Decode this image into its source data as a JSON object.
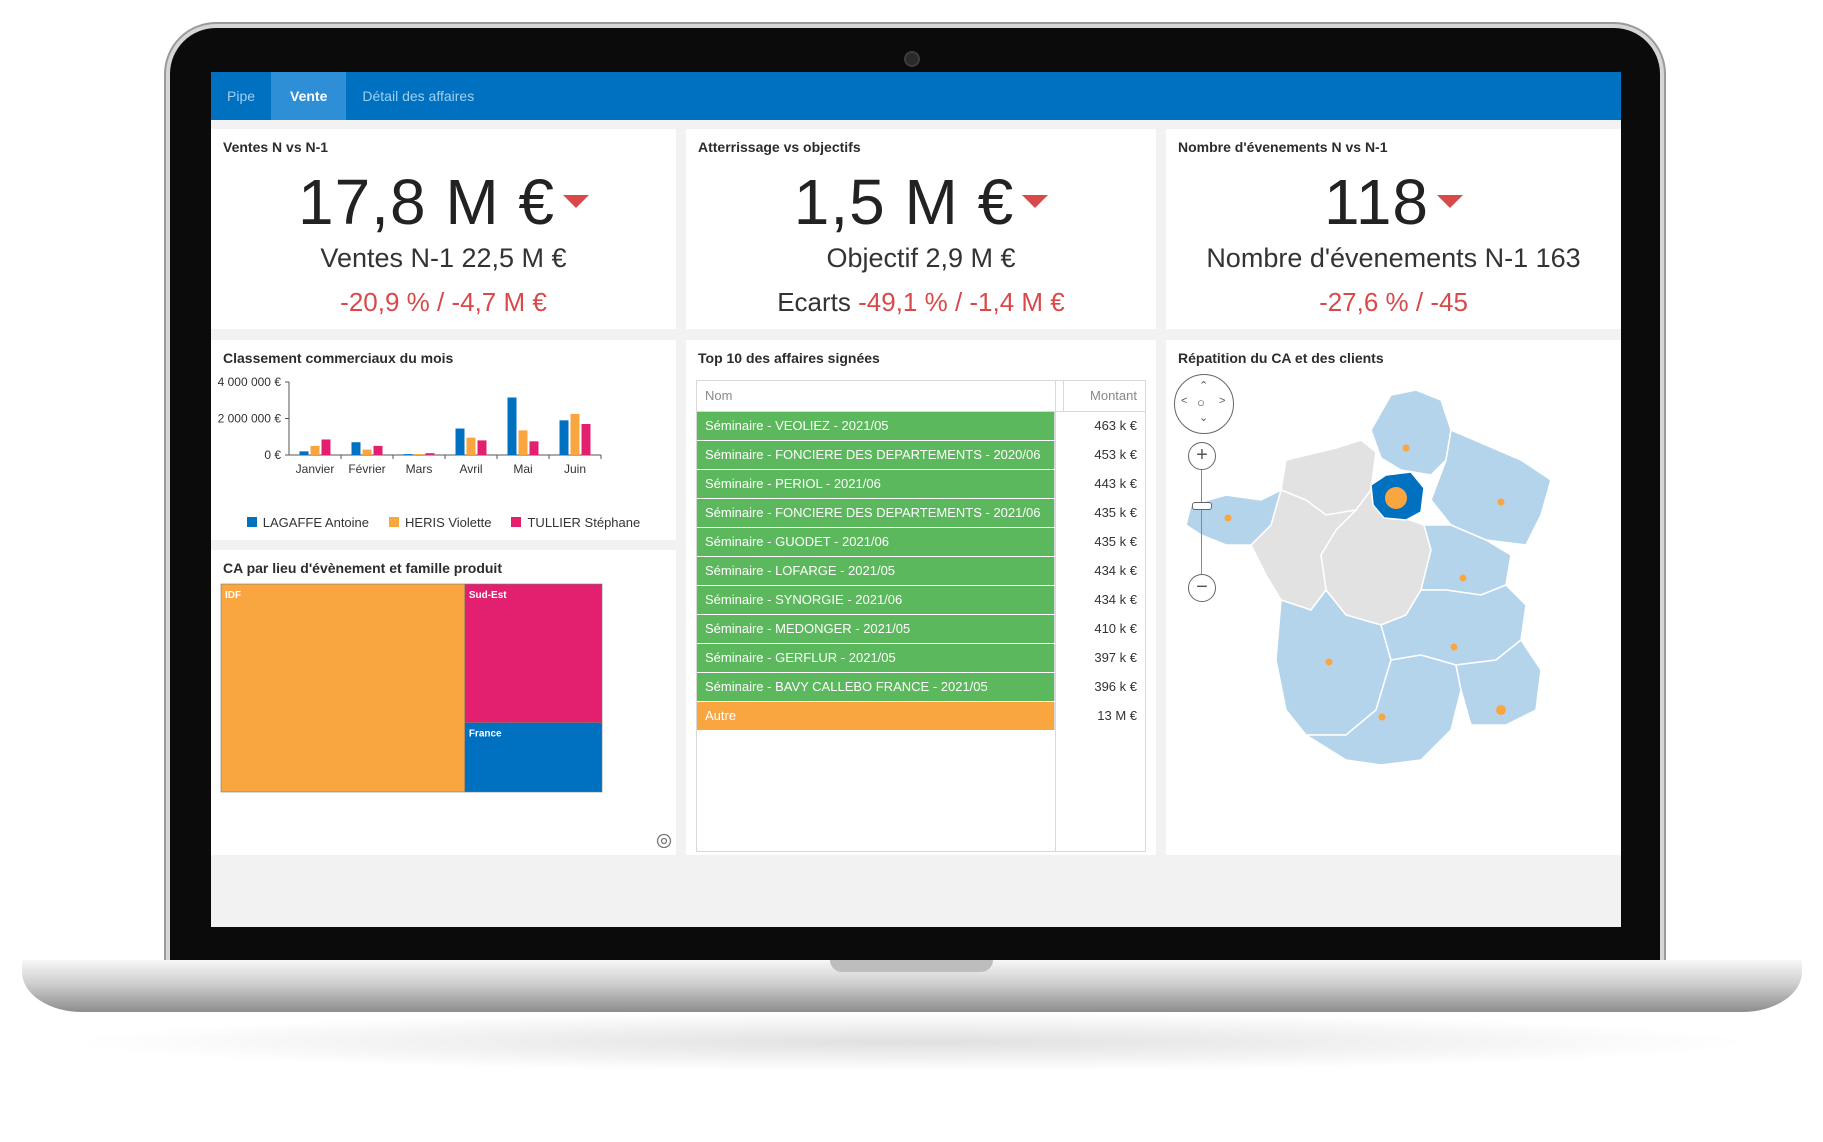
{
  "tabs": [
    {
      "label": "Pipe",
      "active": false
    },
    {
      "label": "Vente",
      "active": true
    },
    {
      "label": "Détail des affaires",
      "active": false
    }
  ],
  "kpis": [
    {
      "title": "Ventes N vs N-1",
      "value": "17,8 M €",
      "sub": "Ventes N-1 22,5 M €",
      "var_label": "",
      "var": "-20,9 % / -4,7 M €"
    },
    {
      "title": "Atterrissage vs objectifs",
      "value": "1,5 M €",
      "sub": "Objectif 2,9 M €",
      "var_label": "Ecarts",
      "var": "-49,1 % / -1,4 M €"
    },
    {
      "title": "Nombre d'évenements N vs N-1",
      "value": "118",
      "sub": "Nombre d'évenements N-1 163",
      "var_label": "",
      "var": "-27,6 % / -45"
    }
  ],
  "ranking": {
    "title": "Classement commerciaux du mois"
  },
  "treemap": {
    "title": "CA par lieu d'évènement et famille produit"
  },
  "top10": {
    "title": "Top 10 des affaires signées",
    "col_name": "Nom",
    "col_amount": "Montant",
    "rows": [
      {
        "name": "Séminaire - VEOLIEZ - 2021/05",
        "amount": "463 k €"
      },
      {
        "name": "Séminaire - FONCIERE DES DEPARTEMENTS - 2020/06",
        "amount": "453 k €"
      },
      {
        "name": "Séminaire - PERIOL - 2021/06",
        "amount": "443 k €"
      },
      {
        "name": "Séminaire - FONCIERE DES DEPARTEMENTS - 2021/06",
        "amount": "435 k €"
      },
      {
        "name": "Séminaire - GUODET - 2021/06",
        "amount": "435 k €"
      },
      {
        "name": "Séminaire - LOFARGE - 2021/05",
        "amount": "434 k €"
      },
      {
        "name": "Séminaire - SYNORGIE - 2021/06",
        "amount": "434 k €"
      },
      {
        "name": "Séminaire - MEDONGER - 2021/05",
        "amount": "410 k €"
      },
      {
        "name": "Séminaire - GERFLUR - 2021/05",
        "amount": "397 k €"
      },
      {
        "name": "Séminaire - BAVY CALLEBO FRANCE - 2021/05",
        "amount": "396 k €"
      },
      {
        "name": "Autre",
        "amount": "13 M €",
        "other": true
      }
    ]
  },
  "map": {
    "title": "Répatition du CA et des clients",
    "zoom_in": "+",
    "zoom_out": "−"
  },
  "chart_data": [
    {
      "type": "bar",
      "title": "Classement commerciaux du mois",
      "categories": [
        "Janvier",
        "Février",
        "Mars",
        "Avril",
        "Mai",
        "Juin"
      ],
      "series": [
        {
          "name": "LAGAFFE Antoine",
          "color": "#0070c0",
          "values": [
            200000,
            700000,
            50000,
            1450000,
            3150000,
            1900000
          ]
        },
        {
          "name": "HERIS Violette",
          "color": "#f9a640",
          "values": [
            500000,
            300000,
            50000,
            950000,
            1350000,
            2250000
          ]
        },
        {
          "name": "TULLIER Stéphane",
          "color": "#e2206f",
          "values": [
            850000,
            500000,
            100000,
            800000,
            750000,
            1700000
          ]
        }
      ],
      "yticks": [
        "4 000 000 €",
        "2 000 000 €",
        "0 €"
      ],
      "ylim": [
        0,
        4000000
      ],
      "legend": "bottom"
    },
    {
      "type": "treemap",
      "title": "CA par lieu d'évènement et famille produit",
      "items": [
        {
          "label": "IDF",
          "value": 64,
          "color": "#f9a640"
        },
        {
          "label": "Sud-Est",
          "value": 24,
          "color": "#e2206f"
        },
        {
          "label": "France",
          "value": 12,
          "color": "#0070c0"
        }
      ]
    }
  ]
}
